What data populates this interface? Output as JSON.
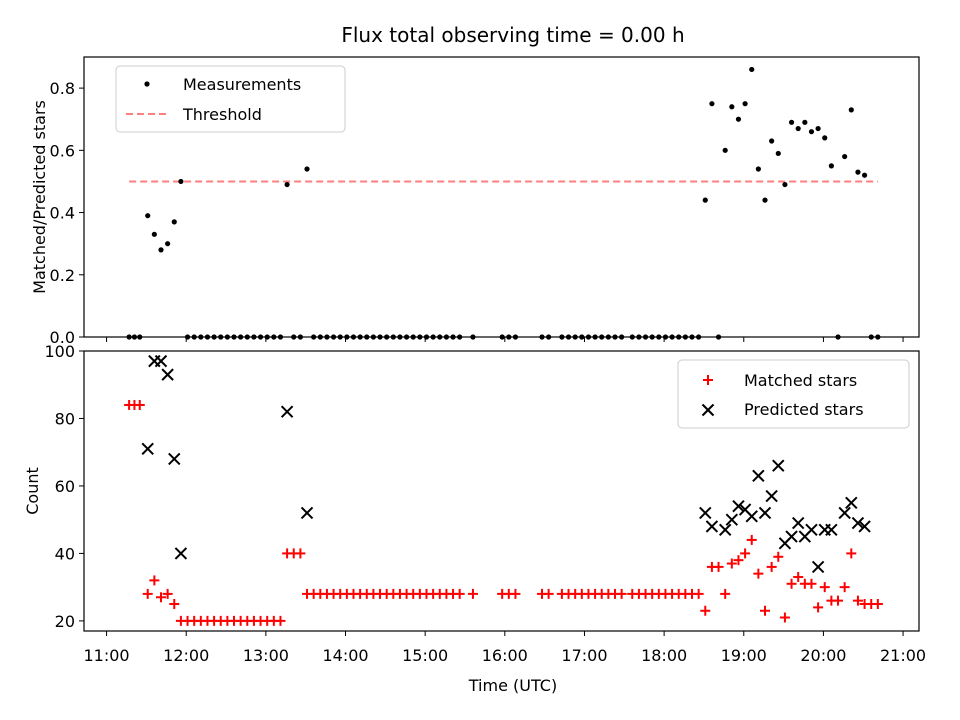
{
  "chart_data": [
    {
      "type": "scatter",
      "title": "Flux total observing time = 0.00 h",
      "xlabel": "",
      "ylabel": "Matched/Predicted stars",
      "ylim": [
        0,
        0.9
      ],
      "yticks": [
        "0.0",
        "0.2",
        "0.4",
        "0.6",
        "0.8"
      ],
      "ytick_values": [
        0,
        0.2,
        0.4,
        0.6,
        0.8
      ],
      "xlim": [
        "11:00",
        "21:00"
      ],
      "legend_position": "top-left",
      "threshold": {
        "name": "Threshold",
        "value": 0.5,
        "x_start": "11:17",
        "x_end": "20:41",
        "color": "#ff7f7f"
      },
      "series": [
        {
          "name": "Measurements",
          "color": "#000000",
          "points": [
            [
              "11:17",
              0
            ],
            [
              "11:21",
              0
            ],
            [
              "11:25",
              0
            ],
            [
              "11:31",
              0.39
            ],
            [
              "11:36",
              0.33
            ],
            [
              "11:41",
              0.28
            ],
            [
              "11:46",
              0.3
            ],
            [
              "11:51",
              0.37
            ],
            [
              "11:56",
              0.5
            ],
            [
              "12:01",
              0
            ],
            [
              "12:06",
              0
            ],
            [
              "12:11",
              0
            ],
            [
              "12:16",
              0
            ],
            [
              "12:21",
              0
            ],
            [
              "12:26",
              0
            ],
            [
              "12:31",
              0
            ],
            [
              "12:36",
              0
            ],
            [
              "12:41",
              0
            ],
            [
              "12:46",
              0
            ],
            [
              "12:51",
              0
            ],
            [
              "12:56",
              0
            ],
            [
              "13:01",
              0
            ],
            [
              "13:06",
              0
            ],
            [
              "13:11",
              0
            ],
            [
              "13:16",
              0.49
            ],
            [
              "13:21",
              0
            ],
            [
              "13:26",
              0
            ],
            [
              "13:31",
              0.54
            ],
            [
              "13:36",
              0
            ],
            [
              "13:41",
              0
            ],
            [
              "13:46",
              0
            ],
            [
              "13:51",
              0
            ],
            [
              "13:56",
              0
            ],
            [
              "14:01",
              0
            ],
            [
              "14:06",
              0
            ],
            [
              "14:11",
              0
            ],
            [
              "14:16",
              0
            ],
            [
              "14:21",
              0
            ],
            [
              "14:26",
              0
            ],
            [
              "14:31",
              0
            ],
            [
              "14:36",
              0
            ],
            [
              "14:41",
              0
            ],
            [
              "14:46",
              0
            ],
            [
              "14:51",
              0
            ],
            [
              "14:56",
              0
            ],
            [
              "15:01",
              0
            ],
            [
              "15:06",
              0
            ],
            [
              "15:11",
              0
            ],
            [
              "15:16",
              0
            ],
            [
              "15:21",
              0
            ],
            [
              "15:26",
              0
            ],
            [
              "15:36",
              0
            ],
            [
              "15:58",
              0
            ],
            [
              "16:03",
              0
            ],
            [
              "16:08",
              0
            ],
            [
              "16:28",
              0
            ],
            [
              "16:33",
              0
            ],
            [
              "16:43",
              0
            ],
            [
              "16:48",
              0
            ],
            [
              "16:53",
              0
            ],
            [
              "16:58",
              0
            ],
            [
              "17:03",
              0
            ],
            [
              "17:08",
              0
            ],
            [
              "17:13",
              0
            ],
            [
              "17:18",
              0
            ],
            [
              "17:23",
              0
            ],
            [
              "17:28",
              0
            ],
            [
              "17:36",
              0
            ],
            [
              "17:41",
              0
            ],
            [
              "17:46",
              0
            ],
            [
              "17:51",
              0
            ],
            [
              "17:56",
              0
            ],
            [
              "18:01",
              0
            ],
            [
              "18:06",
              0
            ],
            [
              "18:11",
              0
            ],
            [
              "18:16",
              0
            ],
            [
              "18:21",
              0
            ],
            [
              "18:26",
              0
            ],
            [
              "18:31",
              0.44
            ],
            [
              "18:36",
              0.75
            ],
            [
              "18:41",
              0
            ],
            [
              "18:46",
              0.6
            ],
            [
              "18:51",
              0.74
            ],
            [
              "18:56",
              0.7
            ],
            [
              "19:01",
              0.75
            ],
            [
              "19:06",
              0.86
            ],
            [
              "19:11",
              0.54
            ],
            [
              "19:16",
              0.44
            ],
            [
              "19:21",
              0.63
            ],
            [
              "19:26",
              0.59
            ],
            [
              "19:31",
              0.49
            ],
            [
              "19:36",
              0.69
            ],
            [
              "19:41",
              0.67
            ],
            [
              "19:46",
              0.69
            ],
            [
              "19:51",
              0.66
            ],
            [
              "19:56",
              0.67
            ],
            [
              "20:01",
              0.64
            ],
            [
              "20:06",
              0.55
            ],
            [
              "20:11",
              0
            ],
            [
              "20:16",
              0.58
            ],
            [
              "20:21",
              0.73
            ],
            [
              "20:26",
              0.53
            ],
            [
              "20:31",
              0.52
            ],
            [
              "20:36",
              0
            ],
            [
              "20:41",
              0
            ]
          ]
        }
      ]
    },
    {
      "type": "scatter",
      "title": "",
      "xlabel": "Time (UTC)",
      "ylabel": "Count",
      "ylim": [
        17,
        100
      ],
      "yticks": [
        "20",
        "40",
        "60",
        "80",
        "100"
      ],
      "ytick_values": [
        20,
        40,
        60,
        80,
        100
      ],
      "xlim": [
        "11:00",
        "21:00"
      ],
      "xticks": [
        "11:00",
        "12:00",
        "13:00",
        "14:00",
        "15:00",
        "16:00",
        "17:00",
        "18:00",
        "19:00",
        "20:00",
        "21:00"
      ],
      "legend_position": "top-right",
      "series": [
        {
          "name": "Matched stars",
          "marker": "plus",
          "color": "#ff0000",
          "points": [
            [
              "11:17",
              84
            ],
            [
              "11:21",
              84
            ],
            [
              "11:25",
              84
            ],
            [
              "11:31",
              28
            ],
            [
              "11:36",
              32
            ],
            [
              "11:41",
              27
            ],
            [
              "11:46",
              28
            ],
            [
              "11:51",
              25
            ],
            [
              "11:56",
              20
            ],
            [
              "12:01",
              20
            ],
            [
              "12:06",
              20
            ],
            [
              "12:11",
              20
            ],
            [
              "12:16",
              20
            ],
            [
              "12:21",
              20
            ],
            [
              "12:26",
              20
            ],
            [
              "12:31",
              20
            ],
            [
              "12:36",
              20
            ],
            [
              "12:41",
              20
            ],
            [
              "12:46",
              20
            ],
            [
              "12:51",
              20
            ],
            [
              "12:56",
              20
            ],
            [
              "13:01",
              20
            ],
            [
              "13:06",
              20
            ],
            [
              "13:11",
              20
            ],
            [
              "13:16",
              40
            ],
            [
              "13:21",
              40
            ],
            [
              "13:26",
              40
            ],
            [
              "13:31",
              28
            ],
            [
              "13:36",
              28
            ],
            [
              "13:41",
              28
            ],
            [
              "13:46",
              28
            ],
            [
              "13:51",
              28
            ],
            [
              "13:56",
              28
            ],
            [
              "14:01",
              28
            ],
            [
              "14:06",
              28
            ],
            [
              "14:11",
              28
            ],
            [
              "14:16",
              28
            ],
            [
              "14:21",
              28
            ],
            [
              "14:26",
              28
            ],
            [
              "14:31",
              28
            ],
            [
              "14:36",
              28
            ],
            [
              "14:41",
              28
            ],
            [
              "14:46",
              28
            ],
            [
              "14:51",
              28
            ],
            [
              "14:56",
              28
            ],
            [
              "15:01",
              28
            ],
            [
              "15:06",
              28
            ],
            [
              "15:11",
              28
            ],
            [
              "15:16",
              28
            ],
            [
              "15:21",
              28
            ],
            [
              "15:26",
              28
            ],
            [
              "15:36",
              28
            ],
            [
              "15:58",
              28
            ],
            [
              "16:03",
              28
            ],
            [
              "16:08",
              28
            ],
            [
              "16:28",
              28
            ],
            [
              "16:33",
              28
            ],
            [
              "16:43",
              28
            ],
            [
              "16:48",
              28
            ],
            [
              "16:53",
              28
            ],
            [
              "16:58",
              28
            ],
            [
              "17:03",
              28
            ],
            [
              "17:08",
              28
            ],
            [
              "17:13",
              28
            ],
            [
              "17:18",
              28
            ],
            [
              "17:23",
              28
            ],
            [
              "17:28",
              28
            ],
            [
              "17:36",
              28
            ],
            [
              "17:41",
              28
            ],
            [
              "17:46",
              28
            ],
            [
              "17:51",
              28
            ],
            [
              "17:56",
              28
            ],
            [
              "18:01",
              28
            ],
            [
              "18:06",
              28
            ],
            [
              "18:11",
              28
            ],
            [
              "18:16",
              28
            ],
            [
              "18:21",
              28
            ],
            [
              "18:26",
              28
            ],
            [
              "18:31",
              23
            ],
            [
              "18:36",
              36
            ],
            [
              "18:41",
              36
            ],
            [
              "18:46",
              28
            ],
            [
              "18:51",
              37
            ],
            [
              "18:56",
              38
            ],
            [
              "19:01",
              40
            ],
            [
              "19:06",
              44
            ],
            [
              "19:11",
              34
            ],
            [
              "19:16",
              23
            ],
            [
              "19:21",
              36
            ],
            [
              "19:26",
              39
            ],
            [
              "19:31",
              21
            ],
            [
              "19:36",
              31
            ],
            [
              "19:41",
              33
            ],
            [
              "19:46",
              31
            ],
            [
              "19:51",
              31
            ],
            [
              "19:56",
              24
            ],
            [
              "20:01",
              30
            ],
            [
              "20:06",
              26
            ],
            [
              "20:11",
              26
            ],
            [
              "20:16",
              30
            ],
            [
              "20:21",
              40
            ],
            [
              "20:26",
              26
            ],
            [
              "20:31",
              25
            ],
            [
              "20:36",
              25
            ],
            [
              "20:41",
              25
            ]
          ]
        },
        {
          "name": "Predicted stars",
          "marker": "x",
          "color": "#000000",
          "points": [
            [
              "11:31",
              71
            ],
            [
              "11:36",
              97
            ],
            [
              "11:41",
              97
            ],
            [
              "11:46",
              93
            ],
            [
              "11:51",
              68
            ],
            [
              "11:56",
              40
            ],
            [
              "13:16",
              82
            ],
            [
              "13:31",
              52
            ],
            [
              "18:31",
              52
            ],
            [
              "18:36",
              48
            ],
            [
              "18:46",
              47
            ],
            [
              "18:51",
              50
            ],
            [
              "18:56",
              54
            ],
            [
              "19:01",
              53
            ],
            [
              "19:06",
              51
            ],
            [
              "19:11",
              63
            ],
            [
              "19:16",
              52
            ],
            [
              "19:21",
              57
            ],
            [
              "19:26",
              66
            ],
            [
              "19:31",
              43
            ],
            [
              "19:36",
              45
            ],
            [
              "19:41",
              49
            ],
            [
              "19:46",
              45
            ],
            [
              "19:51",
              47
            ],
            [
              "19:56",
              36
            ],
            [
              "20:01",
              47
            ],
            [
              "20:06",
              47
            ],
            [
              "20:16",
              52
            ],
            [
              "20:21",
              55
            ],
            [
              "20:26",
              49
            ],
            [
              "20:31",
              48
            ]
          ]
        }
      ]
    }
  ]
}
